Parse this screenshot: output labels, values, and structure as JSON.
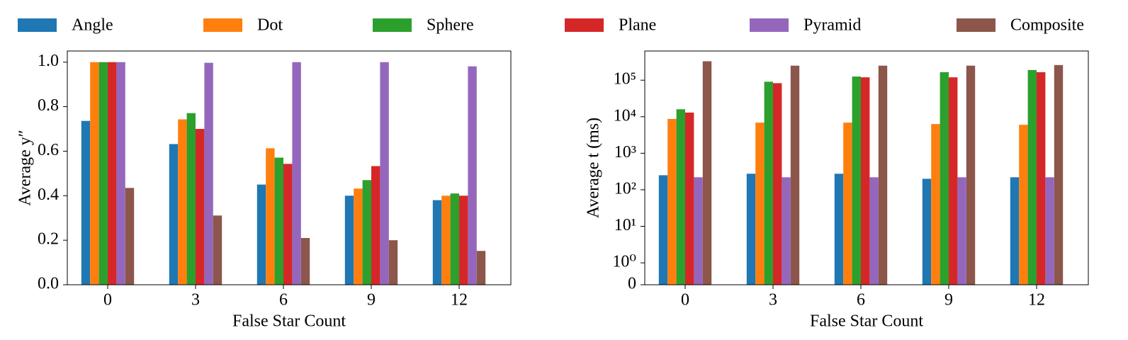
{
  "chart_data": [
    {
      "type": "bar",
      "xlabel": "False Star Count",
      "ylabel": "Average y″",
      "categories": [
        "0",
        "3",
        "6",
        "9",
        "12"
      ],
      "ylim": [
        0,
        1.05
      ],
      "yticks": [
        {
          "value": 0,
          "label": "0.0"
        },
        0.2,
        0.4,
        0.6,
        0.8,
        {
          "value": 1,
          "label": "1.0"
        }
      ],
      "series": [
        {
          "name": "Angle",
          "color": "#1f77b4",
          "values": [
            0.736,
            0.632,
            0.45,
            0.4,
            0.38
          ]
        },
        {
          "name": "Dot",
          "color": "#ff7f0e",
          "values": [
            1.0,
            0.743,
            0.613,
            0.432,
            0.4
          ]
        },
        {
          "name": "Sphere",
          "color": "#2ca02c",
          "values": [
            1.0,
            0.771,
            0.571,
            0.47,
            0.41
          ]
        },
        {
          "name": "Plane",
          "color": "#d62728",
          "values": [
            1.0,
            0.7,
            0.543,
            0.533,
            0.4
          ]
        },
        {
          "name": "Pyramid",
          "color": "#9467bd",
          "values": [
            1.0,
            0.997,
            1.0,
            1.0,
            0.981
          ]
        },
        {
          "name": "Composite",
          "color": "#8c564b",
          "values": [
            0.435,
            0.311,
            0.21,
            0.2,
            0.152
          ]
        }
      ]
    },
    {
      "type": "bar",
      "xlabel": "False Star Count",
      "ylabel": "Average t (ms)",
      "yscale": "symlog",
      "categories": [
        "0",
        "3",
        "6",
        "9",
        "12"
      ],
      "ylim": [
        0,
        630000
      ],
      "yticks": [
        0,
        {
          "value": 1,
          "label": "10⁰"
        },
        {
          "value": 10,
          "label": "10¹"
        },
        {
          "value": 100,
          "label": "10²"
        },
        {
          "value": 1000,
          "label": "10³"
        },
        {
          "value": 10000,
          "label": "10⁴"
        },
        {
          "value": 100000,
          "label": "10⁵"
        }
      ],
      "series": [
        {
          "name": "Angle",
          "color": "#1f77b4",
          "values": [
            250,
            275,
            275,
            200,
            220
          ]
        },
        {
          "name": "Dot",
          "color": "#ff7f0e",
          "values": [
            8700,
            6900,
            6900,
            6300,
            6000
          ]
        },
        {
          "name": "Sphere",
          "color": "#2ca02c",
          "values": [
            16000,
            91000,
            126000,
            166000,
            190000
          ]
        },
        {
          "name": "Plane",
          "color": "#d62728",
          "values": [
            13000,
            83000,
            120000,
            120000,
            166000
          ]
        },
        {
          "name": "Pyramid",
          "color": "#9467bd",
          "values": [
            220,
            220,
            220,
            220,
            220
          ]
        },
        {
          "name": "Composite",
          "color": "#8c564b",
          "values": [
            330000,
            250000,
            250000,
            250000,
            260000
          ]
        }
      ]
    }
  ]
}
